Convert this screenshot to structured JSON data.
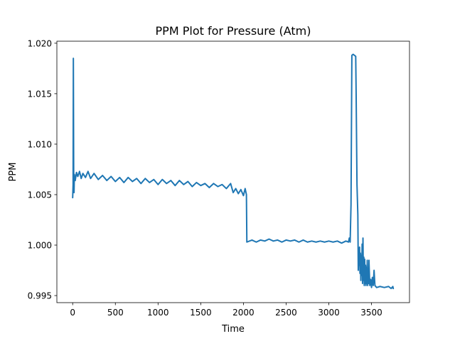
{
  "chart_data": {
    "type": "line",
    "title": "PPM Plot for Pressure (Atm)",
    "xlabel": "Time",
    "ylabel": "PPM",
    "xlim": [
      -185,
      3945
    ],
    "ylim": [
      0.9943,
      1.0202
    ],
    "xticks": [
      0,
      500,
      1000,
      1500,
      2000,
      2500,
      3000,
      3500
    ],
    "yticks": [
      0.995,
      1.0,
      1.005,
      1.01,
      1.015,
      1.02
    ],
    "ytick_labels": [
      "0.995",
      "1.000",
      "1.005",
      "1.010",
      "1.015",
      "1.020"
    ],
    "grid": false,
    "series": [
      {
        "color": "#1f77b4",
        "points": [
          [
            0,
            1.0047
          ],
          [
            5,
            1.006
          ],
          [
            8,
            1.0185
          ],
          [
            12,
            1.007
          ],
          [
            16,
            1.0052
          ],
          [
            20,
            1.007
          ],
          [
            30,
            1.0064
          ],
          [
            45,
            1.0072
          ],
          [
            60,
            1.0068
          ],
          [
            80,
            1.0073
          ],
          [
            100,
            1.0066
          ],
          [
            120,
            1.0071
          ],
          [
            150,
            1.0067
          ],
          [
            180,
            1.0073
          ],
          [
            210,
            1.0066
          ],
          [
            250,
            1.0071
          ],
          [
            300,
            1.0065
          ],
          [
            350,
            1.0069
          ],
          [
            400,
            1.0064
          ],
          [
            450,
            1.0068
          ],
          [
            500,
            1.0063
          ],
          [
            550,
            1.0067
          ],
          [
            600,
            1.0062
          ],
          [
            650,
            1.0067
          ],
          [
            700,
            1.0063
          ],
          [
            750,
            1.0066
          ],
          [
            800,
            1.0061
          ],
          [
            850,
            1.0066
          ],
          [
            900,
            1.0062
          ],
          [
            950,
            1.0065
          ],
          [
            1000,
            1.006
          ],
          [
            1050,
            1.0065
          ],
          [
            1100,
            1.0061
          ],
          [
            1150,
            1.0064
          ],
          [
            1200,
            1.0059
          ],
          [
            1250,
            1.0064
          ],
          [
            1300,
            1.006
          ],
          [
            1350,
            1.0063
          ],
          [
            1400,
            1.0058
          ],
          [
            1450,
            1.0062
          ],
          [
            1500,
            1.0059
          ],
          [
            1550,
            1.0061
          ],
          [
            1600,
            1.0057
          ],
          [
            1650,
            1.0061
          ],
          [
            1700,
            1.0058
          ],
          [
            1750,
            1.006
          ],
          [
            1800,
            1.0056
          ],
          [
            1850,
            1.0061
          ],
          [
            1880,
            1.0052
          ],
          [
            1910,
            1.0056
          ],
          [
            1940,
            1.0051
          ],
          [
            1970,
            1.0055
          ],
          [
            2000,
            1.0049
          ],
          [
            2020,
            1.0056
          ],
          [
            2035,
            1.005
          ],
          [
            2040,
            1.0003
          ],
          [
            2100,
            1.0005
          ],
          [
            2150,
            1.0003
          ],
          [
            2200,
            1.0005
          ],
          [
            2250,
            1.0004
          ],
          [
            2300,
            1.0006
          ],
          [
            2350,
            1.0004
          ],
          [
            2400,
            1.0005
          ],
          [
            2450,
            1.0003
          ],
          [
            2500,
            1.0005
          ],
          [
            2550,
            1.0004
          ],
          [
            2600,
            1.0005
          ],
          [
            2650,
            1.0003
          ],
          [
            2700,
            1.0005
          ],
          [
            2750,
            1.0003
          ],
          [
            2800,
            1.0004
          ],
          [
            2850,
            1.0003
          ],
          [
            2900,
            1.0004
          ],
          [
            2950,
            1.0003
          ],
          [
            3000,
            1.0004
          ],
          [
            3050,
            1.0003
          ],
          [
            3100,
            1.0004
          ],
          [
            3150,
            1.0002
          ],
          [
            3200,
            1.0004
          ],
          [
            3230,
            1.0003
          ],
          [
            3240,
            1.0007
          ],
          [
            3250,
            1.0003
          ],
          [
            3260,
            1.004
          ],
          [
            3270,
            1.0188
          ],
          [
            3285,
            1.0189
          ],
          [
            3300,
            1.0188
          ],
          [
            3315,
            1.0187
          ],
          [
            3320,
            1.015
          ],
          [
            3330,
            1.006
          ],
          [
            3340,
            1.003
          ],
          [
            3345,
            0.9975
          ],
          [
            3350,
            0.9995
          ],
          [
            3355,
            0.998
          ],
          [
            3360,
            0.9998
          ],
          [
            3365,
            0.9972
          ],
          [
            3370,
            0.9992
          ],
          [
            3375,
            0.9965
          ],
          [
            3380,
            0.999
          ],
          [
            3385,
            0.997
          ],
          [
            3390,
            1.0001
          ],
          [
            3395,
            0.9962
          ],
          [
            3400,
            1.0007
          ],
          [
            3405,
            0.9965
          ],
          [
            3410,
            0.9988
          ],
          [
            3415,
            0.996
          ],
          [
            3420,
            0.9986
          ],
          [
            3425,
            0.9962
          ],
          [
            3430,
            0.998
          ],
          [
            3435,
            0.996
          ],
          [
            3440,
            0.9978
          ],
          [
            3445,
            0.9962
          ],
          [
            3450,
            0.9985
          ],
          [
            3455,
            0.996
          ],
          [
            3460,
            0.9975
          ],
          [
            3465,
            0.9962
          ],
          [
            3470,
            0.9985
          ],
          [
            3480,
            0.996
          ],
          [
            3490,
            0.9966
          ],
          [
            3500,
            0.9958
          ],
          [
            3510,
            0.9968
          ],
          [
            3520,
            0.996
          ],
          [
            3530,
            0.9975
          ],
          [
            3540,
            0.996
          ],
          [
            3560,
            0.9958
          ],
          [
            3600,
            0.9959
          ],
          [
            3650,
            0.9958
          ],
          [
            3700,
            0.9959
          ],
          [
            3730,
            0.9957
          ],
          [
            3750,
            0.9959
          ],
          [
            3755,
            0.9957
          ]
        ]
      }
    ]
  }
}
